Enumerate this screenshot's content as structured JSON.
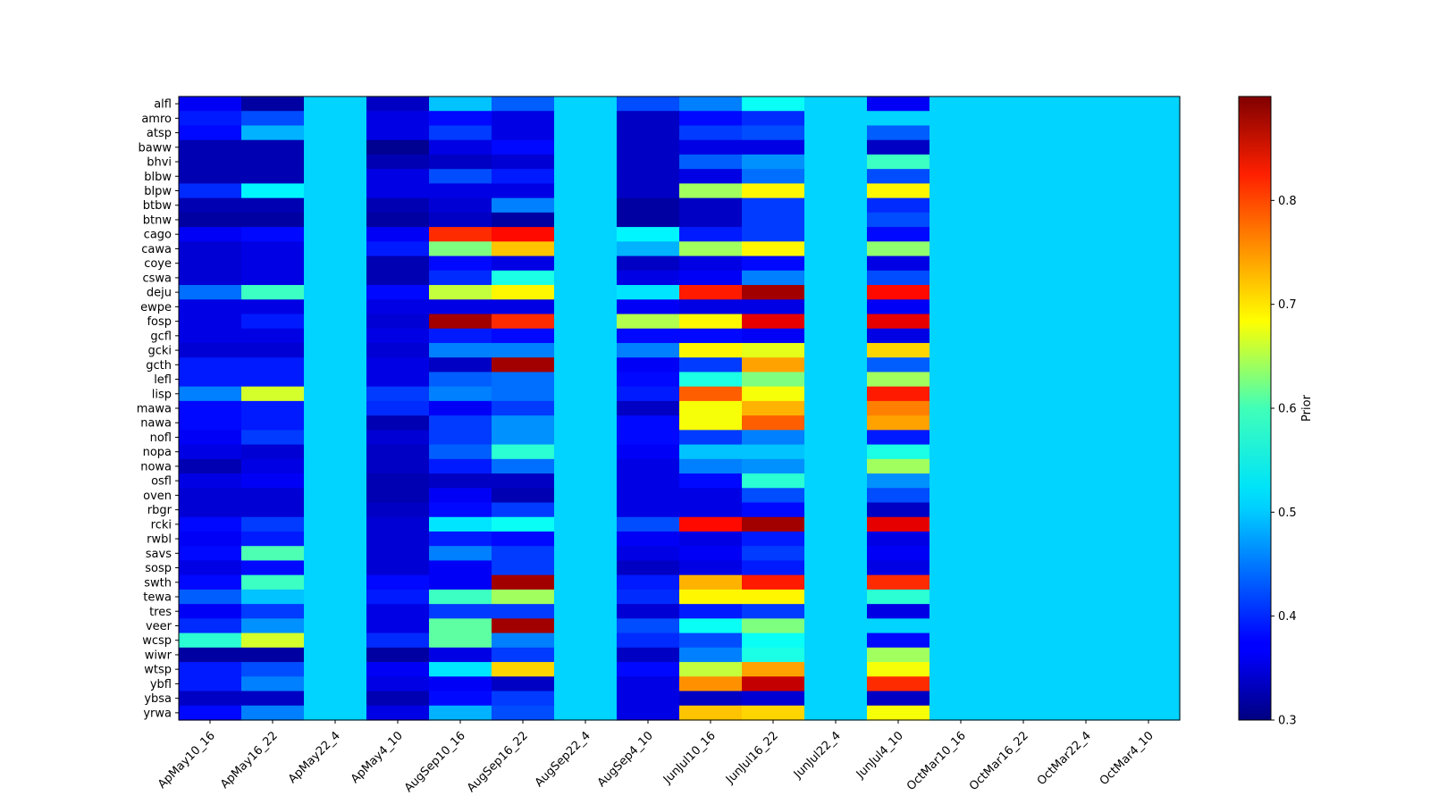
{
  "chart_data": {
    "type": "heatmap",
    "title": "",
    "xlabel": "",
    "ylabel": "",
    "colormap": "jet",
    "colorbar": {
      "label": "Prior",
      "range": [
        0.3,
        0.9
      ],
      "ticks": [
        "0.3",
        "0.4",
        "0.5",
        "0.6",
        "0.7",
        "0.8"
      ]
    },
    "x_categories": [
      "ApMay10_16",
      "ApMay16_22",
      "ApMay22_4",
      "ApMay4_10",
      "AugSep10_16",
      "AugSep16_22",
      "AugSep22_4",
      "AugSep4_10",
      "JunJul10_16",
      "JunJul16_22",
      "JunJul22_4",
      "JunJul4_10",
      "OctMar10_16",
      "OctMar16_22",
      "OctMar22_4",
      "OctMar4_10"
    ],
    "y_categories": [
      "alfl",
      "amro",
      "atsp",
      "baww",
      "bhvi",
      "blbw",
      "blpw",
      "btbw",
      "btnw",
      "cago",
      "cawa",
      "coye",
      "cswa",
      "deju",
      "ewpe",
      "fosp",
      "gcfl",
      "gcki",
      "gcth",
      "lefl",
      "lisp",
      "mawa",
      "nawa",
      "nofl",
      "nopa",
      "nowa",
      "osfl",
      "oven",
      "rbgr",
      "rcki",
      "rwbl",
      "savs",
      "sosp",
      "swth",
      "tewa",
      "tres",
      "veer",
      "wcsp",
      "wiwr",
      "wtsp",
      "ybfl",
      "ybsa",
      "yrwa"
    ],
    "values": [
      [
        0.37,
        0.32,
        0.5,
        0.34,
        0.49,
        0.43,
        0.5,
        0.42,
        0.45,
        0.53,
        0.5,
        0.37,
        0.5,
        0.5,
        0.5,
        0.5
      ],
      [
        0.39,
        0.42,
        0.5,
        0.36,
        0.38,
        0.36,
        0.5,
        0.34,
        0.38,
        0.4,
        0.5,
        0.5,
        0.5,
        0.5,
        0.5,
        0.5
      ],
      [
        0.38,
        0.48,
        0.5,
        0.36,
        0.41,
        0.36,
        0.5,
        0.34,
        0.41,
        0.42,
        0.5,
        0.43,
        0.5,
        0.5,
        0.5,
        0.5
      ],
      [
        0.33,
        0.33,
        0.5,
        0.31,
        0.36,
        0.38,
        0.5,
        0.34,
        0.36,
        0.36,
        0.5,
        0.34,
        0.5,
        0.5,
        0.5,
        0.5
      ],
      [
        0.33,
        0.33,
        0.5,
        0.33,
        0.34,
        0.35,
        0.5,
        0.34,
        0.43,
        0.46,
        0.5,
        0.56,
        0.5,
        0.5,
        0.5,
        0.5
      ],
      [
        0.33,
        0.33,
        0.5,
        0.36,
        0.42,
        0.39,
        0.5,
        0.34,
        0.36,
        0.44,
        0.5,
        0.42,
        0.5,
        0.5,
        0.5,
        0.5
      ],
      [
        0.4,
        0.52,
        0.5,
        0.36,
        0.36,
        0.36,
        0.5,
        0.34,
        0.62,
        0.68,
        0.5,
        0.68,
        0.5,
        0.5,
        0.5,
        0.5
      ],
      [
        0.33,
        0.33,
        0.5,
        0.33,
        0.35,
        0.45,
        0.5,
        0.32,
        0.34,
        0.41,
        0.5,
        0.4,
        0.5,
        0.5,
        0.5,
        0.5
      ],
      [
        0.32,
        0.32,
        0.5,
        0.32,
        0.34,
        0.32,
        0.5,
        0.32,
        0.34,
        0.41,
        0.5,
        0.42,
        0.5,
        0.5,
        0.5,
        0.5
      ],
      [
        0.37,
        0.38,
        0.5,
        0.37,
        0.8,
        0.82,
        0.5,
        0.52,
        0.39,
        0.41,
        0.5,
        0.38,
        0.5,
        0.5,
        0.5,
        0.5
      ],
      [
        0.35,
        0.36,
        0.5,
        0.39,
        0.6,
        0.71,
        0.5,
        0.48,
        0.62,
        0.68,
        0.5,
        0.61,
        0.5,
        0.5,
        0.5,
        0.5
      ],
      [
        0.35,
        0.36,
        0.5,
        0.33,
        0.38,
        0.36,
        0.5,
        0.34,
        0.36,
        0.38,
        0.5,
        0.36,
        0.5,
        0.5,
        0.5,
        0.5
      ],
      [
        0.35,
        0.36,
        0.5,
        0.33,
        0.4,
        0.54,
        0.5,
        0.36,
        0.37,
        0.45,
        0.5,
        0.42,
        0.5,
        0.5,
        0.5,
        0.5
      ],
      [
        0.44,
        0.56,
        0.5,
        0.38,
        0.64,
        0.68,
        0.5,
        0.51,
        0.81,
        0.88,
        0.5,
        0.82,
        0.5,
        0.5,
        0.5,
        0.5
      ],
      [
        0.36,
        0.36,
        0.5,
        0.36,
        0.36,
        0.36,
        0.5,
        0.37,
        0.36,
        0.36,
        0.5,
        0.37,
        0.5,
        0.5,
        0.5,
        0.5
      ],
      [
        0.36,
        0.39,
        0.5,
        0.35,
        0.88,
        0.8,
        0.5,
        0.63,
        0.68,
        0.84,
        0.5,
        0.84,
        0.5,
        0.5,
        0.5,
        0.5
      ],
      [
        0.36,
        0.36,
        0.5,
        0.36,
        0.39,
        0.38,
        0.5,
        0.38,
        0.38,
        0.37,
        0.5,
        0.36,
        0.5,
        0.5,
        0.5,
        0.5
      ],
      [
        0.35,
        0.35,
        0.5,
        0.35,
        0.45,
        0.45,
        0.5,
        0.45,
        0.68,
        0.66,
        0.5,
        0.7,
        0.5,
        0.5,
        0.5,
        0.5
      ],
      [
        0.39,
        0.39,
        0.5,
        0.36,
        0.34,
        0.88,
        0.5,
        0.37,
        0.41,
        0.73,
        0.5,
        0.43,
        0.5,
        0.5,
        0.5,
        0.5
      ],
      [
        0.39,
        0.39,
        0.5,
        0.36,
        0.43,
        0.44,
        0.5,
        0.38,
        0.54,
        0.6,
        0.5,
        0.62,
        0.5,
        0.5,
        0.5,
        0.5
      ],
      [
        0.45,
        0.65,
        0.5,
        0.41,
        0.45,
        0.44,
        0.5,
        0.39,
        0.77,
        0.67,
        0.5,
        0.81,
        0.5,
        0.5,
        0.5,
        0.5
      ],
      [
        0.38,
        0.39,
        0.5,
        0.4,
        0.37,
        0.41,
        0.5,
        0.34,
        0.67,
        0.72,
        0.5,
        0.75,
        0.5,
        0.5,
        0.5,
        0.5
      ],
      [
        0.38,
        0.39,
        0.5,
        0.33,
        0.41,
        0.46,
        0.5,
        0.38,
        0.67,
        0.77,
        0.5,
        0.73,
        0.5,
        0.5,
        0.5,
        0.5
      ],
      [
        0.37,
        0.41,
        0.5,
        0.35,
        0.41,
        0.46,
        0.5,
        0.38,
        0.41,
        0.45,
        0.5,
        0.39,
        0.5,
        0.5,
        0.5,
        0.5
      ],
      [
        0.36,
        0.35,
        0.5,
        0.34,
        0.43,
        0.55,
        0.5,
        0.37,
        0.49,
        0.49,
        0.5,
        0.54,
        0.5,
        0.5,
        0.5,
        0.5
      ],
      [
        0.33,
        0.36,
        0.5,
        0.34,
        0.39,
        0.44,
        0.5,
        0.36,
        0.45,
        0.46,
        0.5,
        0.62,
        0.5,
        0.5,
        0.5,
        0.5
      ],
      [
        0.36,
        0.37,
        0.5,
        0.33,
        0.34,
        0.34,
        0.5,
        0.36,
        0.38,
        0.55,
        0.5,
        0.46,
        0.5,
        0.5,
        0.5,
        0.5
      ],
      [
        0.35,
        0.35,
        0.5,
        0.33,
        0.37,
        0.33,
        0.5,
        0.36,
        0.36,
        0.42,
        0.5,
        0.42,
        0.5,
        0.5,
        0.5,
        0.5
      ],
      [
        0.35,
        0.35,
        0.5,
        0.34,
        0.38,
        0.41,
        0.5,
        0.36,
        0.36,
        0.38,
        0.5,
        0.34,
        0.5,
        0.5,
        0.5,
        0.5
      ],
      [
        0.38,
        0.41,
        0.5,
        0.35,
        0.51,
        0.53,
        0.5,
        0.42,
        0.82,
        0.88,
        0.5,
        0.84,
        0.5,
        0.5,
        0.5,
        0.5
      ],
      [
        0.37,
        0.39,
        0.5,
        0.35,
        0.39,
        0.38,
        0.5,
        0.37,
        0.36,
        0.39,
        0.5,
        0.36,
        0.5,
        0.5,
        0.5,
        0.5
      ],
      [
        0.38,
        0.57,
        0.5,
        0.35,
        0.45,
        0.41,
        0.5,
        0.36,
        0.37,
        0.41,
        0.5,
        0.37,
        0.5,
        0.5,
        0.5,
        0.5
      ],
      [
        0.36,
        0.38,
        0.5,
        0.35,
        0.37,
        0.41,
        0.5,
        0.34,
        0.36,
        0.39,
        0.5,
        0.36,
        0.5,
        0.5,
        0.5,
        0.5
      ],
      [
        0.38,
        0.56,
        0.5,
        0.38,
        0.37,
        0.88,
        0.5,
        0.39,
        0.72,
        0.81,
        0.5,
        0.8,
        0.5,
        0.5,
        0.5,
        0.5
      ],
      [
        0.43,
        0.49,
        0.5,
        0.39,
        0.56,
        0.62,
        0.5,
        0.4,
        0.68,
        0.68,
        0.5,
        0.55,
        0.5,
        0.5,
        0.5,
        0.5
      ],
      [
        0.37,
        0.41,
        0.5,
        0.36,
        0.41,
        0.41,
        0.5,
        0.35,
        0.39,
        0.41,
        0.5,
        0.36,
        0.5,
        0.5,
        0.5,
        0.5
      ],
      [
        0.4,
        0.46,
        0.5,
        0.36,
        0.58,
        0.88,
        0.5,
        0.42,
        0.53,
        0.6,
        0.5,
        0.5,
        0.5,
        0.5,
        0.5,
        0.5
      ],
      [
        0.55,
        0.65,
        0.5,
        0.4,
        0.58,
        0.45,
        0.5,
        0.4,
        0.42,
        0.53,
        0.5,
        0.38,
        0.5,
        0.5,
        0.5,
        0.5
      ],
      [
        0.32,
        0.32,
        0.5,
        0.32,
        0.36,
        0.41,
        0.5,
        0.34,
        0.45,
        0.54,
        0.5,
        0.62,
        0.5,
        0.5,
        0.5,
        0.5
      ],
      [
        0.39,
        0.42,
        0.5,
        0.37,
        0.51,
        0.7,
        0.5,
        0.38,
        0.64,
        0.73,
        0.5,
        0.67,
        0.5,
        0.5,
        0.5,
        0.5
      ],
      [
        0.39,
        0.45,
        0.5,
        0.36,
        0.37,
        0.34,
        0.5,
        0.36,
        0.74,
        0.86,
        0.5,
        0.8,
        0.5,
        0.5,
        0.5,
        0.5
      ],
      [
        0.34,
        0.34,
        0.5,
        0.33,
        0.38,
        0.41,
        0.5,
        0.36,
        0.34,
        0.35,
        0.5,
        0.34,
        0.5,
        0.5,
        0.5,
        0.5
      ],
      [
        0.38,
        0.45,
        0.5,
        0.36,
        0.48,
        0.42,
        0.5,
        0.36,
        0.71,
        0.7,
        0.5,
        0.67,
        0.5,
        0.5,
        0.5,
        0.5
      ]
    ]
  }
}
